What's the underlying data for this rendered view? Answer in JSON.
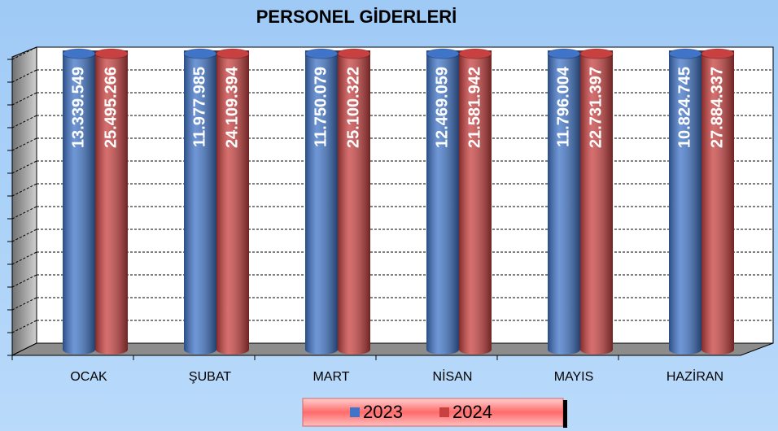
{
  "chart_data": {
    "type": "bar3d",
    "title": "PERSONEL GİDERLERİ",
    "categories": [
      "OCAK",
      "ŞUBAT",
      "MART",
      "NİSAN",
      "MAYIS",
      "HAZİRAN"
    ],
    "series": [
      {
        "name": "2023",
        "color": "#3f74c8",
        "values": [
          13339549,
          11977985,
          11750079,
          12469059,
          11796004,
          10824745
        ],
        "value_labels": [
          "13.339.549",
          "11.977.985",
          "11.750.079",
          "12.469.059",
          "11.796.004",
          "10.824.745"
        ]
      },
      {
        "name": "2024",
        "color": "#c8403f",
        "values": [
          25495266,
          24109394,
          25100322,
          21581942,
          22731397,
          27884337
        ],
        "value_labels": [
          "25.495.266",
          "24.109.394",
          "25.100.322",
          "21.581.942",
          "22.731.397",
          "27.884.337"
        ]
      }
    ],
    "ylim": [
      0,
      10400000
    ],
    "yticks": [
      0,
      800000,
      1600000,
      2400000,
      3200000,
      4000000,
      4800000,
      5600000,
      6400000,
      7200000,
      8000000,
      8800000,
      9600000,
      10400000
    ],
    "grid": true,
    "legend": "bottom"
  }
}
